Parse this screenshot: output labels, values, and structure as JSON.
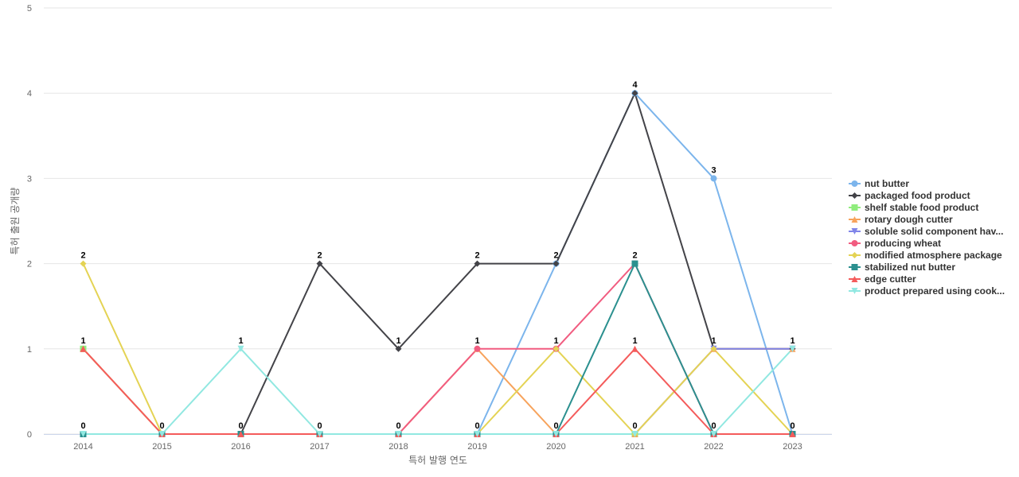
{
  "chart_data": {
    "type": "line",
    "title": "",
    "xlabel": "특허 발행 연도",
    "ylabel": "특허 출원 공개량",
    "x": [
      "2014",
      "2015",
      "2016",
      "2017",
      "2018",
      "2019",
      "2020",
      "2021",
      "2022",
      "2023"
    ],
    "ylim": [
      0,
      5
    ],
    "yticks": [
      0,
      1,
      2,
      3,
      4,
      5
    ],
    "grid": true,
    "legend_position": "right",
    "data_labels_shown": "per-year maximum only",
    "series": [
      {
        "name": "nut butter",
        "color": "#7cb5ec",
        "marker": "circle",
        "values": [
          0,
          0,
          0,
          0,
          0,
          0,
          2,
          4,
          3,
          0
        ]
      },
      {
        "name": "packaged food product",
        "color": "#434348",
        "marker": "diamond",
        "values": [
          0,
          0,
          0,
          2,
          1,
          2,
          2,
          4,
          1,
          1
        ]
      },
      {
        "name": "shelf stable food product",
        "color": "#90ed7d",
        "marker": "square",
        "values": [
          1,
          0,
          0,
          0,
          0,
          0,
          0,
          0,
          0,
          0
        ]
      },
      {
        "name": "rotary dough cutter",
        "color": "#f7a35c",
        "marker": "triangle",
        "values": [
          1,
          0,
          0,
          0,
          0,
          1,
          0,
          0,
          1,
          1
        ]
      },
      {
        "name": "soluble solid component hav...",
        "color": "#8085e9",
        "marker": "triangle-down",
        "values": [
          0,
          0,
          0,
          0,
          0,
          0,
          0,
          0,
          1,
          1
        ]
      },
      {
        "name": "producing wheat",
        "color": "#f15c80",
        "marker": "circle",
        "values": [
          0,
          0,
          0,
          0,
          0,
          1,
          1,
          2,
          0,
          0
        ]
      },
      {
        "name": "modified atmosphere package",
        "color": "#e4d354",
        "marker": "diamond",
        "values": [
          2,
          0,
          0,
          0,
          0,
          0,
          1,
          0,
          1,
          0
        ]
      },
      {
        "name": "stabilized nut butter",
        "color": "#2b908f",
        "marker": "square",
        "values": [
          0,
          0,
          0,
          0,
          0,
          0,
          0,
          2,
          0,
          0
        ]
      },
      {
        "name": "edge cutter",
        "color": "#f45b5b",
        "marker": "triangle",
        "values": [
          1,
          0,
          0,
          0,
          0,
          0,
          0,
          1,
          0,
          0
        ]
      },
      {
        "name": "product prepared using cook...",
        "color": "#91e8e1",
        "marker": "triangle-down",
        "values": [
          0,
          0,
          1,
          0,
          0,
          0,
          0,
          0,
          0,
          1
        ]
      }
    ],
    "data_labels": [
      {
        "x": "2014",
        "value": "2"
      },
      {
        "x": "2014",
        "value": "1"
      },
      {
        "x": "2014",
        "value": "0"
      },
      {
        "x": "2015",
        "value": "0"
      },
      {
        "x": "2016",
        "value": "1"
      },
      {
        "x": "2016",
        "value": "0"
      },
      {
        "x": "2017",
        "value": "2"
      },
      {
        "x": "2017",
        "value": "0"
      },
      {
        "x": "2018",
        "value": "1"
      },
      {
        "x": "2018",
        "value": "0"
      },
      {
        "x": "2019",
        "value": "2"
      },
      {
        "x": "2019",
        "value": "1"
      },
      {
        "x": "2019",
        "value": "0"
      },
      {
        "x": "2020",
        "value": "2"
      },
      {
        "x": "2020",
        "value": "1"
      },
      {
        "x": "2020",
        "value": "0"
      },
      {
        "x": "2021",
        "value": "4"
      },
      {
        "x": "2021",
        "value": "2"
      },
      {
        "x": "2021",
        "value": "1"
      },
      {
        "x": "2021",
        "value": "0"
      },
      {
        "x": "2022",
        "value": "3"
      },
      {
        "x": "2022",
        "value": "1"
      },
      {
        "x": "2022",
        "value": "0"
      },
      {
        "x": "2023",
        "value": "1"
      },
      {
        "x": "2023",
        "value": "0"
      }
    ]
  }
}
